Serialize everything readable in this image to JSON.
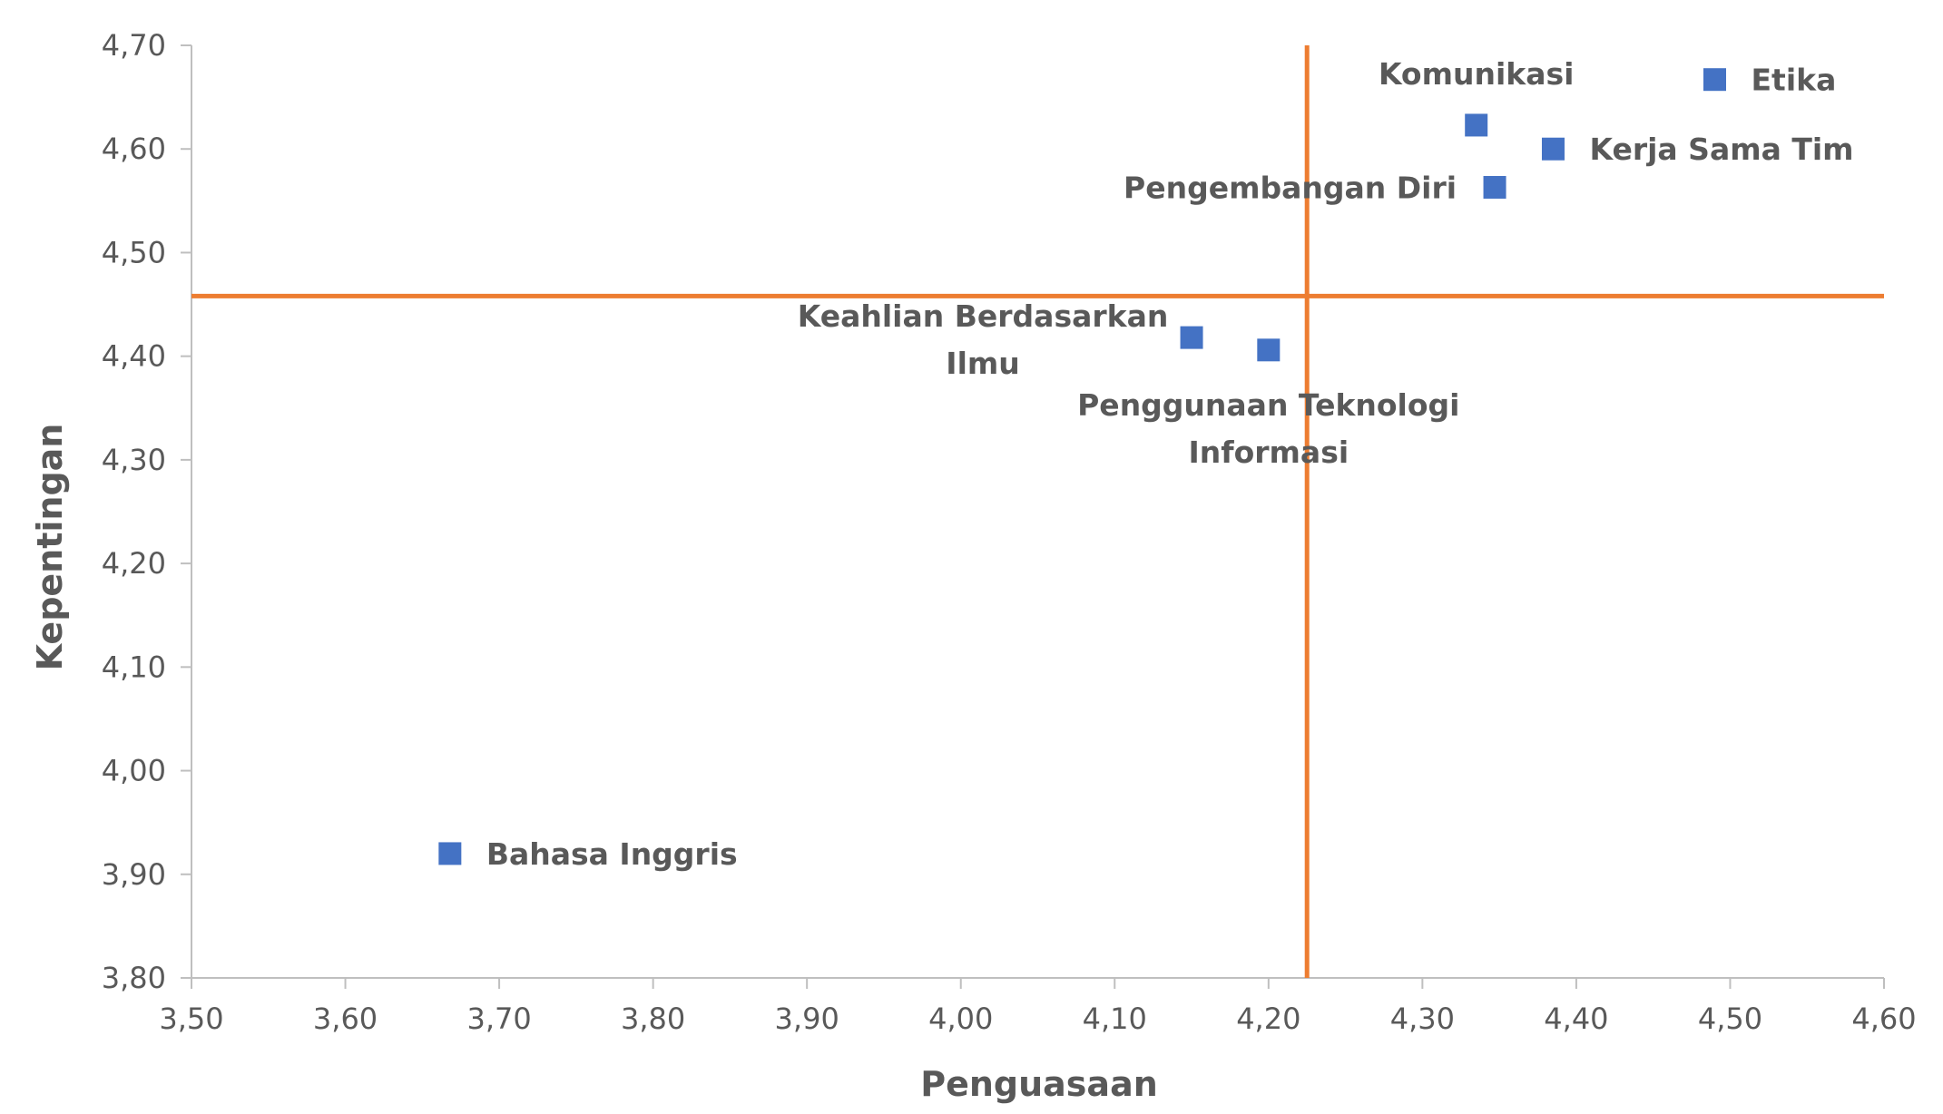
{
  "chart_data": {
    "type": "scatter",
    "xlabel": "Penguasaan",
    "ylabel": "Kepentingan",
    "xlim": [
      3.5,
      4.6
    ],
    "ylim": [
      3.8,
      4.7
    ],
    "x_ticks": [
      "3,50",
      "3,60",
      "3,70",
      "3,80",
      "3,90",
      "4,00",
      "4,10",
      "4,20",
      "4,30",
      "4,40",
      "4,50",
      "4,60"
    ],
    "y_ticks": [
      "4,70",
      "4,60",
      "4,50",
      "4,40",
      "4,30",
      "4,20",
      "4,10",
      "4,00",
      "3,90",
      "3,80"
    ],
    "grid": false,
    "marker": "square",
    "marker_color": "#4472C4",
    "reference_line_color": "#ED7D31",
    "reference_lines": {
      "x": 4.225,
      "y": 4.458
    },
    "points": [
      {
        "label": [
          "Etika"
        ],
        "x": 4.49,
        "y": 4.667,
        "label_pos": "right"
      },
      {
        "label": [
          "Komunikasi"
        ],
        "x": 4.335,
        "y": 4.623,
        "label_pos": "above"
      },
      {
        "label": [
          "Kerja Sama Tim"
        ],
        "x": 4.385,
        "y": 4.6,
        "label_pos": "right"
      },
      {
        "label": [
          "Pengembangan Diri"
        ],
        "x": 4.347,
        "y": 4.563,
        "label_pos": "left"
      },
      {
        "label": [
          "Keahlian Berdasarkan",
          "Ilmu"
        ],
        "x": 4.15,
        "y": 4.418,
        "label_pos": "upper-left"
      },
      {
        "label": [
          "Penggunaan Teknologi",
          "Informasi"
        ],
        "x": 4.2,
        "y": 4.406,
        "label_pos": "below"
      },
      {
        "label": [
          "Bahasa Inggris"
        ],
        "x": 3.668,
        "y": 3.92,
        "label_pos": "right"
      }
    ]
  }
}
